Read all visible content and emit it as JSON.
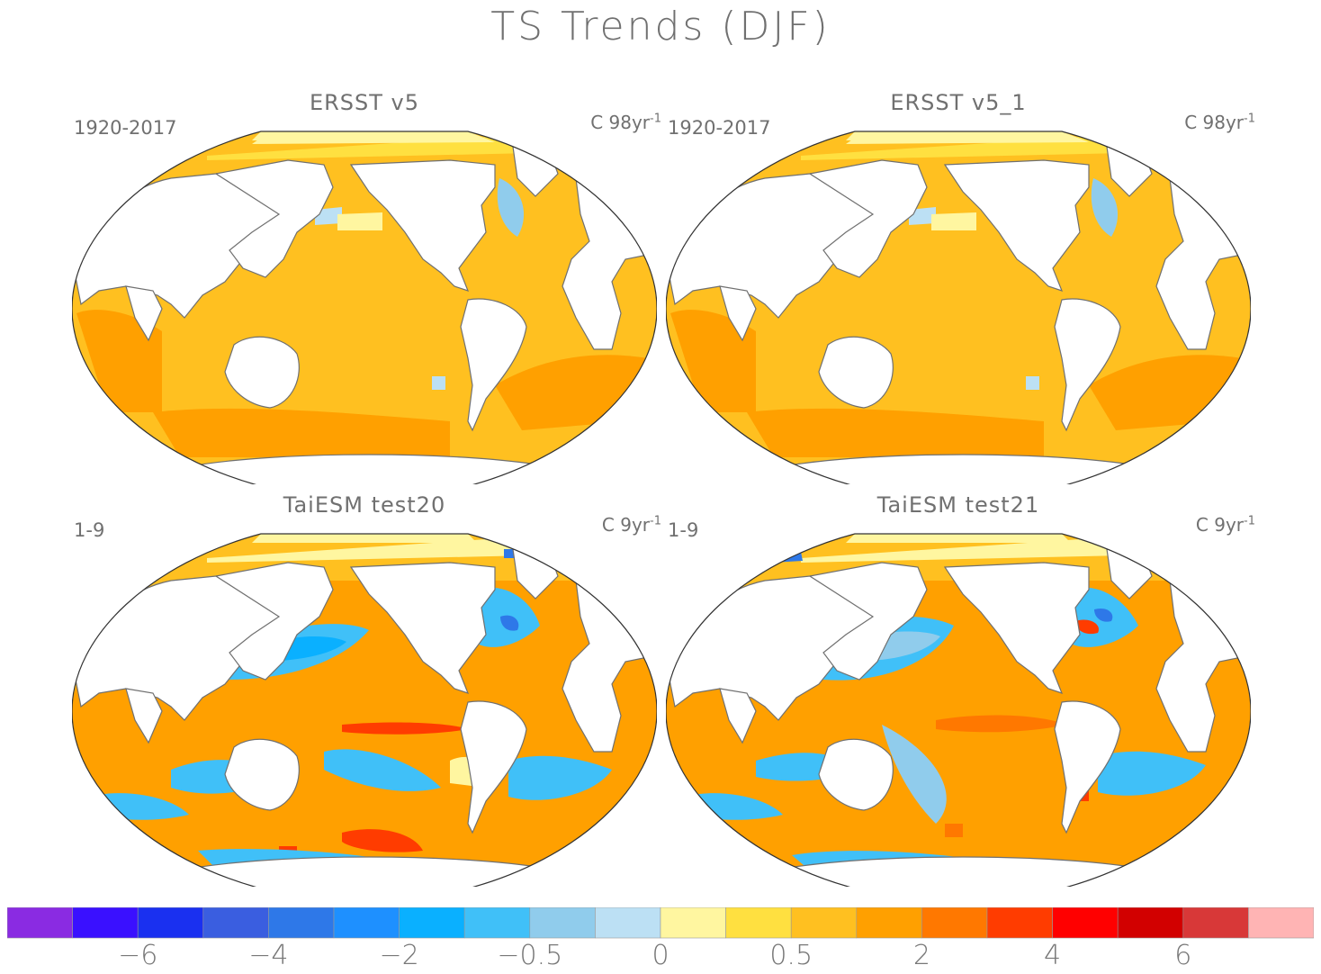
{
  "title": "TS Trends (DJF)",
  "panels": [
    {
      "title": "ERSST v5",
      "period": "1920-2017",
      "units_base": "C 98yr",
      "units_exp": "-1",
      "pattern": "obs"
    },
    {
      "title": "ERSST v5_1",
      "period": "1920-2017",
      "units_base": "C 98yr",
      "units_exp": "-1",
      "pattern": "obs"
    },
    {
      "title": "TaiESM test20",
      "period": "1-9",
      "units_base": "C 9yr",
      "units_exp": "-1",
      "pattern": "model"
    },
    {
      "title": "TaiESM test21",
      "period": "1-9",
      "units_base": "C 9yr",
      "units_exp": "-1",
      "pattern": "model2"
    }
  ],
  "colorbar": {
    "colors": [
      "#8a2be2",
      "#3a10ff",
      "#1a30f0",
      "#3a5ee0",
      "#2e78e8",
      "#1e90ff",
      "#0ab0ff",
      "#40c0f8",
      "#90ccec",
      "#bce0f4",
      "#fff6a0",
      "#ffe040",
      "#ffc020",
      "#ffa000",
      "#ff7800",
      "#ff3c00",
      "#ff0000",
      "#d20000",
      "#d83838",
      "#ffb4b4"
    ],
    "labels": [
      "−6",
      "−4",
      "−2",
      "−0.5",
      "0",
      "0.5",
      "2",
      "4",
      "6"
    ]
  },
  "colors": {
    "ocean_base": "#ffc020",
    "ocean_warm": "#ffa000",
    "arctic": "#fff6a0",
    "coast": "#707070",
    "frame": "#333333"
  }
}
